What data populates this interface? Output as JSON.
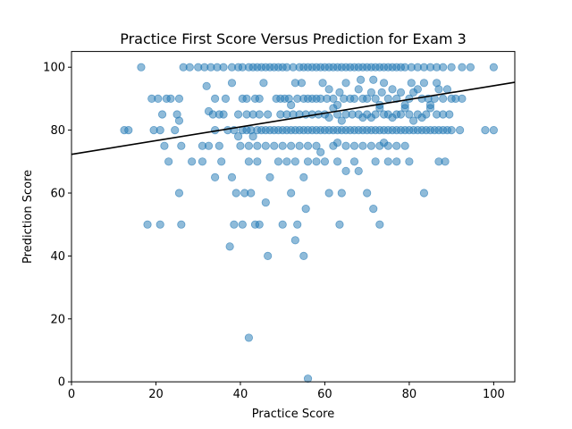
{
  "chart_data": {
    "type": "scatter",
    "title": "Practice First Score Versus Prediction for Exam 3",
    "xlabel": "Practice Score",
    "ylabel": "Prediction Score",
    "xlim": [
      0,
      105
    ],
    "ylim": [
      0,
      105
    ],
    "xticks": [
      0,
      20,
      40,
      60,
      80,
      100
    ],
    "yticks": [
      0,
      20,
      40,
      60,
      80,
      100
    ],
    "grid": false,
    "point_color": "#1f77b4",
    "point_alpha": 0.5,
    "line_color": "#000000",
    "trend_line": {
      "x": [
        0,
        105
      ],
      "y": [
        72.3,
        95.2
      ]
    },
    "points": [
      [
        16.5,
        100
      ],
      [
        26.5,
        100
      ],
      [
        28.0,
        100
      ],
      [
        30.0,
        100
      ],
      [
        31.5,
        100
      ],
      [
        33.0,
        100
      ],
      [
        34.5,
        100
      ],
      [
        36.0,
        100
      ],
      [
        38.0,
        100
      ],
      [
        39.5,
        100
      ],
      [
        40.5,
        100
      ],
      [
        42.0,
        100
      ],
      [
        43.0,
        100
      ],
      [
        44.0,
        100
      ],
      [
        45.0,
        100
      ],
      [
        46.0,
        100
      ],
      [
        47.0,
        100
      ],
      [
        48.0,
        100
      ],
      [
        49.0,
        100
      ],
      [
        50.0,
        100
      ],
      [
        51.0,
        100
      ],
      [
        52.5,
        100
      ],
      [
        54.0,
        100
      ],
      [
        55.0,
        100
      ],
      [
        56.0,
        100
      ],
      [
        57.0,
        100
      ],
      [
        58.0,
        100
      ],
      [
        59.0,
        100
      ],
      [
        60.0,
        100
      ],
      [
        61.0,
        100
      ],
      [
        62.0,
        100
      ],
      [
        63.0,
        100
      ],
      [
        64.0,
        100
      ],
      [
        65.0,
        100
      ],
      [
        66.0,
        100
      ],
      [
        67.0,
        100
      ],
      [
        68.0,
        100
      ],
      [
        69.0,
        100
      ],
      [
        70.0,
        100
      ],
      [
        71.0,
        100
      ],
      [
        72.0,
        100
      ],
      [
        73.0,
        100
      ],
      [
        74.0,
        100
      ],
      [
        75.0,
        100
      ],
      [
        76.0,
        100
      ],
      [
        77.0,
        100
      ],
      [
        78.0,
        100
      ],
      [
        79.0,
        100
      ],
      [
        80.5,
        100
      ],
      [
        82.0,
        100
      ],
      [
        83.5,
        100
      ],
      [
        85.0,
        100
      ],
      [
        86.5,
        100
      ],
      [
        88.0,
        100
      ],
      [
        90.0,
        100
      ],
      [
        92.5,
        100
      ],
      [
        94.5,
        100
      ],
      [
        100.0,
        100
      ],
      [
        19.0,
        90
      ],
      [
        20.5,
        90
      ],
      [
        22.5,
        90
      ],
      [
        23.5,
        90
      ],
      [
        25.5,
        90
      ],
      [
        32.0,
        94
      ],
      [
        34.0,
        90
      ],
      [
        36.5,
        90
      ],
      [
        38.0,
        95
      ],
      [
        40.5,
        90
      ],
      [
        41.5,
        90
      ],
      [
        43.5,
        90
      ],
      [
        44.5,
        90
      ],
      [
        45.5,
        95
      ],
      [
        48.5,
        90
      ],
      [
        49.5,
        90
      ],
      [
        50.5,
        90
      ],
      [
        51.5,
        90
      ],
      [
        52.0,
        88
      ],
      [
        53.0,
        95
      ],
      [
        53.5,
        90
      ],
      [
        54.5,
        95
      ],
      [
        55.0,
        90
      ],
      [
        56.0,
        90
      ],
      [
        57.0,
        90
      ],
      [
        58.0,
        90
      ],
      [
        59.0,
        90
      ],
      [
        59.5,
        95
      ],
      [
        60.5,
        90
      ],
      [
        61.0,
        93
      ],
      [
        62.0,
        90
      ],
      [
        63.0,
        88
      ],
      [
        63.5,
        92
      ],
      [
        64.5,
        90
      ],
      [
        65.0,
        95
      ],
      [
        66.0,
        90
      ],
      [
        67.0,
        90
      ],
      [
        68.0,
        93
      ],
      [
        68.5,
        96
      ],
      [
        69.0,
        90
      ],
      [
        70.0,
        90
      ],
      [
        71.0,
        92
      ],
      [
        71.5,
        96
      ],
      [
        72.0,
        90
      ],
      [
        73.0,
        88
      ],
      [
        73.5,
        92
      ],
      [
        74.0,
        95
      ],
      [
        75.0,
        90
      ],
      [
        76.0,
        93
      ],
      [
        77.0,
        90
      ],
      [
        78.0,
        92
      ],
      [
        79.0,
        88
      ],
      [
        80.0,
        90
      ],
      [
        80.5,
        95
      ],
      [
        81.0,
        92
      ],
      [
        82.0,
        93
      ],
      [
        83.0,
        90
      ],
      [
        83.5,
        95
      ],
      [
        84.5,
        90
      ],
      [
        85.0,
        88
      ],
      [
        86.0,
        90
      ],
      [
        86.5,
        95
      ],
      [
        87.0,
        93
      ],
      [
        88.0,
        90
      ],
      [
        89.0,
        93
      ],
      [
        90.0,
        90
      ],
      [
        91.0,
        90
      ],
      [
        92.5,
        90
      ],
      [
        21.5,
        85
      ],
      [
        25.0,
        85
      ],
      [
        25.5,
        83
      ],
      [
        32.5,
        86
      ],
      [
        33.5,
        85
      ],
      [
        35.0,
        85
      ],
      [
        36.0,
        85
      ],
      [
        39.5,
        85
      ],
      [
        41.5,
        85
      ],
      [
        43.0,
        85
      ],
      [
        44.5,
        85
      ],
      [
        46.5,
        85
      ],
      [
        49.5,
        85
      ],
      [
        51.0,
        85
      ],
      [
        52.5,
        85
      ],
      [
        54.0,
        85
      ],
      [
        55.5,
        85
      ],
      [
        57.0,
        85
      ],
      [
        58.5,
        85
      ],
      [
        60.0,
        85
      ],
      [
        61.0,
        84
      ],
      [
        62.0,
        87
      ],
      [
        63.0,
        85
      ],
      [
        64.0,
        83
      ],
      [
        65.0,
        85
      ],
      [
        66.5,
        85
      ],
      [
        68.0,
        85
      ],
      [
        69.0,
        84
      ],
      [
        70.0,
        85
      ],
      [
        71.0,
        84
      ],
      [
        72.0,
        85
      ],
      [
        73.0,
        87
      ],
      [
        74.0,
        85
      ],
      [
        75.0,
        85
      ],
      [
        76.0,
        84
      ],
      [
        77.0,
        85
      ],
      [
        78.0,
        85
      ],
      [
        79.0,
        87
      ],
      [
        80.0,
        85
      ],
      [
        81.0,
        83
      ],
      [
        82.0,
        85
      ],
      [
        83.0,
        84
      ],
      [
        84.0,
        85
      ],
      [
        85.0,
        87
      ],
      [
        86.5,
        85
      ],
      [
        88.0,
        85
      ],
      [
        89.5,
        85
      ],
      [
        12.5,
        80
      ],
      [
        13.5,
        80
      ],
      [
        19.5,
        80
      ],
      [
        21.0,
        80
      ],
      [
        22.0,
        75
      ],
      [
        24.5,
        80
      ],
      [
        26.0,
        75
      ],
      [
        31.0,
        75
      ],
      [
        32.5,
        75
      ],
      [
        34.0,
        80
      ],
      [
        35.0,
        75
      ],
      [
        37.0,
        80
      ],
      [
        38.5,
        80
      ],
      [
        39.5,
        78
      ],
      [
        40.5,
        80
      ],
      [
        41.5,
        80
      ],
      [
        42.5,
        80
      ],
      [
        43.0,
        78
      ],
      [
        44.0,
        80
      ],
      [
        45.0,
        80
      ],
      [
        46.0,
        80
      ],
      [
        47.0,
        80
      ],
      [
        48.0,
        80
      ],
      [
        49.0,
        80
      ],
      [
        50.0,
        80
      ],
      [
        51.0,
        80
      ],
      [
        52.0,
        80
      ],
      [
        53.0,
        80
      ],
      [
        54.0,
        80
      ],
      [
        55.0,
        80
      ],
      [
        56.0,
        80
      ],
      [
        57.0,
        80
      ],
      [
        58.0,
        80
      ],
      [
        59.0,
        80
      ],
      [
        60.0,
        80
      ],
      [
        61.0,
        80
      ],
      [
        62.0,
        80
      ],
      [
        63.0,
        80
      ],
      [
        64.0,
        80
      ],
      [
        65.0,
        80
      ],
      [
        66.0,
        80
      ],
      [
        67.0,
        80
      ],
      [
        68.0,
        80
      ],
      [
        69.0,
        80
      ],
      [
        70.0,
        80
      ],
      [
        71.0,
        80
      ],
      [
        72.0,
        80
      ],
      [
        73.0,
        80
      ],
      [
        74.0,
        80
      ],
      [
        75.0,
        80
      ],
      [
        76.0,
        80
      ],
      [
        77.0,
        80
      ],
      [
        78.0,
        80
      ],
      [
        79.0,
        80
      ],
      [
        80.0,
        80
      ],
      [
        81.0,
        80
      ],
      [
        82.0,
        80
      ],
      [
        83.0,
        80
      ],
      [
        84.0,
        80
      ],
      [
        85.0,
        80
      ],
      [
        86.0,
        80
      ],
      [
        87.0,
        80
      ],
      [
        88.0,
        80
      ],
      [
        89.0,
        80
      ],
      [
        90.0,
        80
      ],
      [
        92.0,
        80
      ],
      [
        98.0,
        80
      ],
      [
        100.0,
        80
      ],
      [
        40.0,
        75
      ],
      [
        42.0,
        75
      ],
      [
        44.0,
        75
      ],
      [
        46.0,
        75
      ],
      [
        48.0,
        75
      ],
      [
        50.0,
        75
      ],
      [
        52.0,
        75
      ],
      [
        54.0,
        75
      ],
      [
        56.0,
        75
      ],
      [
        58.0,
        75
      ],
      [
        59.0,
        73
      ],
      [
        62.0,
        75
      ],
      [
        63.0,
        76
      ],
      [
        65.0,
        75
      ],
      [
        67.0,
        75
      ],
      [
        69.0,
        75
      ],
      [
        71.0,
        75
      ],
      [
        73.0,
        75
      ],
      [
        74.0,
        76
      ],
      [
        75.0,
        75
      ],
      [
        77.0,
        75
      ],
      [
        79.0,
        75
      ],
      [
        18.0,
        50
      ],
      [
        21.0,
        50
      ],
      [
        23.0,
        70
      ],
      [
        26.0,
        50
      ],
      [
        28.5,
        70
      ],
      [
        31.0,
        70
      ],
      [
        34.0,
        65
      ],
      [
        35.5,
        70
      ],
      [
        38.0,
        65
      ],
      [
        39.0,
        60
      ],
      [
        41.0,
        60
      ],
      [
        42.5,
        60
      ],
      [
        42.0,
        70
      ],
      [
        44.0,
        70
      ],
      [
        46.0,
        57
      ],
      [
        47.0,
        65
      ],
      [
        49.0,
        70
      ],
      [
        51.0,
        70
      ],
      [
        52.0,
        60
      ],
      [
        53.0,
        70
      ],
      [
        55.0,
        65
      ],
      [
        56.0,
        70
      ],
      [
        58.0,
        70
      ],
      [
        60.0,
        70
      ],
      [
        61.0,
        60
      ],
      [
        63.0,
        70
      ],
      [
        64.0,
        60
      ],
      [
        65.0,
        67
      ],
      [
        67.0,
        70
      ],
      [
        68.0,
        67
      ],
      [
        70.0,
        60
      ],
      [
        72.0,
        70
      ],
      [
        73.0,
        50
      ],
      [
        75.0,
        70
      ],
      [
        77.0,
        70
      ],
      [
        80.0,
        70
      ],
      [
        83.5,
        60
      ],
      [
        87.0,
        70
      ],
      [
        88.5,
        70
      ],
      [
        25.5,
        60
      ],
      [
        37.5,
        43
      ],
      [
        38.5,
        50
      ],
      [
        40.5,
        50
      ],
      [
        43.5,
        50
      ],
      [
        44.5,
        50
      ],
      [
        46.5,
        40
      ],
      [
        50.0,
        50
      ],
      [
        53.0,
        45
      ],
      [
        53.5,
        50
      ],
      [
        55.0,
        40
      ],
      [
        55.5,
        55
      ],
      [
        63.5,
        50
      ],
      [
        71.5,
        55
      ],
      [
        42.0,
        14
      ],
      [
        56.0,
        1
      ]
    ]
  }
}
